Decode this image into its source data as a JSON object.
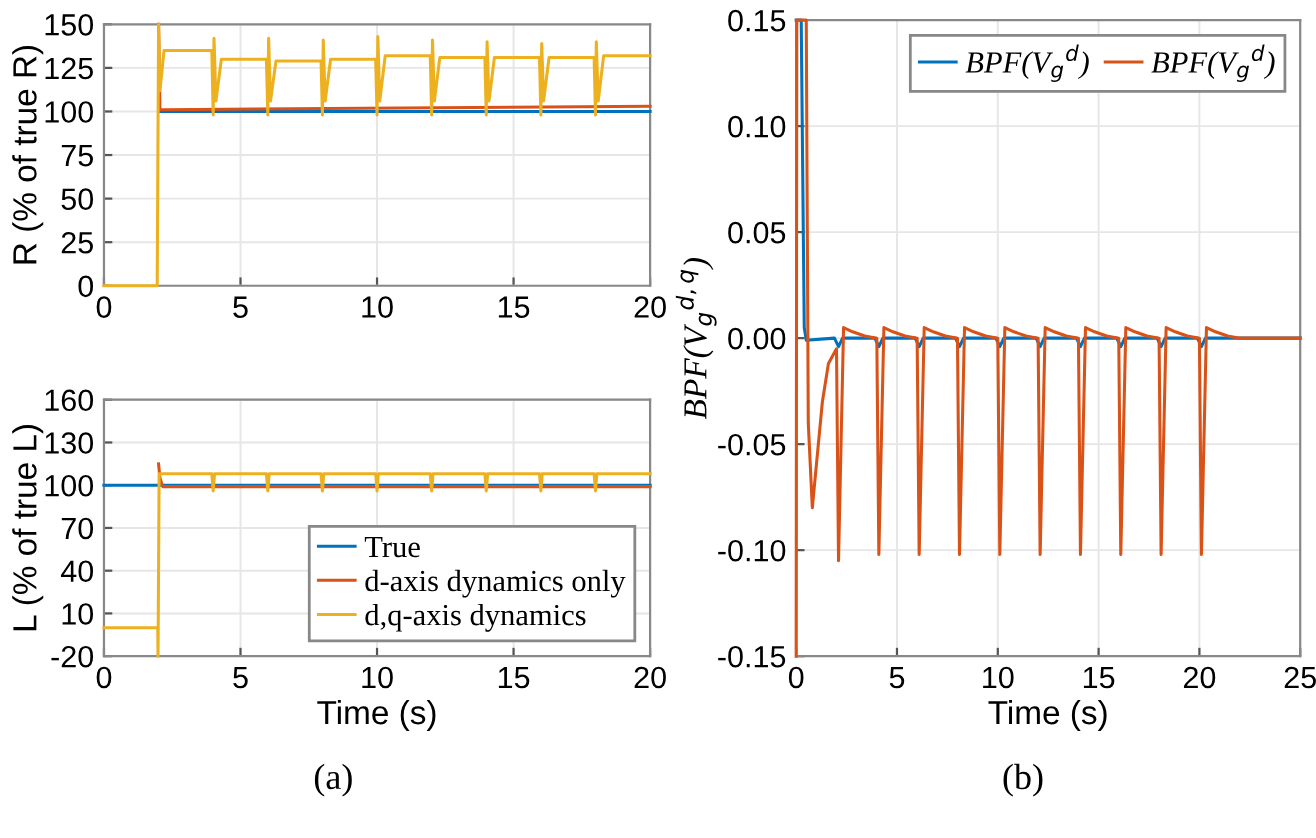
{
  "chart_data": [
    {
      "type": "line",
      "ylabel": "R (% of true R)",
      "xlim": [
        0,
        20
      ],
      "xticks": [
        0,
        5,
        10,
        15,
        20
      ],
      "ylim": [
        0,
        150
      ],
      "yticks": [
        0,
        25,
        50,
        75,
        100,
        125,
        150
      ],
      "grid": true,
      "legend": false,
      "series": [
        {
          "color": "#0072bd",
          "x": [
            2,
            20
          ],
          "values": [
            100,
            100
          ]
        },
        {
          "color": "#d95319",
          "x": [
            2.0,
            2.05,
            2.2,
            20
          ],
          "values": [
            150,
            101,
            101,
            103
          ]
        },
        {
          "color": "#edb120",
          "x": [
            0,
            1.95,
            2.0,
            2.05,
            2.2,
            3.95,
            4.0,
            4.03,
            4.1,
            4.3,
            5.95,
            6.0,
            6.03,
            6.1,
            6.3,
            7.95,
            8.0,
            8.03,
            8.1,
            8.3,
            9.95,
            10.0,
            10.03,
            10.1,
            10.3,
            11.95,
            12.0,
            12.03,
            12.1,
            12.3,
            13.95,
            14.0,
            14.03,
            14.1,
            14.3,
            15.95,
            16.0,
            16.03,
            16.1,
            16.3,
            17.95,
            18.0,
            18.03,
            18.1,
            18.3,
            20
          ],
          "values": [
            0,
            0,
            150,
            112,
            135,
            135,
            98,
            142,
            106,
            130,
            130,
            98,
            142,
            106,
            129,
            129,
            98,
            141,
            106,
            130,
            130,
            98,
            143,
            106,
            132,
            132,
            98,
            141,
            106,
            131,
            131,
            98,
            140,
            106,
            131,
            131,
            98,
            139,
            106,
            131,
            131,
            98,
            140,
            106,
            132,
            132
          ]
        }
      ]
    },
    {
      "type": "line",
      "xlabel": "Time (s)",
      "ylabel": "L (% of true L)",
      "xlim": [
        0,
        20
      ],
      "xticks": [
        0,
        5,
        10,
        15,
        20
      ],
      "ylim": [
        -20,
        160
      ],
      "yticks": [
        -20,
        10,
        40,
        70,
        100,
        130,
        160
      ],
      "grid": true,
      "legend": "bottom right",
      "annotations": [
        "(a)"
      ],
      "series": [
        {
          "name": "True",
          "color": "#0072bd",
          "x": [
            0,
            20
          ],
          "values": [
            100,
            100
          ]
        },
        {
          "name": "d-axis dynamics only",
          "color": "#d95319",
          "x": [
            2.0,
            2.05,
            2.15,
            20
          ],
          "values": [
            115,
            105,
            99,
            99
          ]
        },
        {
          "name": "d,q-axis dynamics",
          "color": "#edb120",
          "x": [
            0,
            1.97,
            1.98,
            2.02,
            3.95,
            4.0,
            4.05,
            5.95,
            6.0,
            6.05,
            7.95,
            8.0,
            8.05,
            9.95,
            10.0,
            10.05,
            11.95,
            12.0,
            12.05,
            13.95,
            14.0,
            14.05,
            15.95,
            16.0,
            16.05,
            17.95,
            18.0,
            18.05,
            20
          ],
          "values": [
            0,
            0,
            -20,
            108,
            108,
            96,
            108,
            108,
            96,
            108,
            108,
            96,
            108,
            108,
            96,
            108,
            108,
            96,
            108,
            108,
            96,
            108,
            108,
            96,
            108,
            108,
            96,
            108,
            108
          ]
        }
      ]
    },
    {
      "type": "line",
      "xlabel": "Time (s)",
      "ylabel": "BPF(V$_{g}$$^{d,q}$)",
      "xlim": [
        0,
        25
      ],
      "xticks": [
        0,
        5,
        10,
        15,
        20,
        25
      ],
      "ylim": [
        -0.15,
        0.15
      ],
      "yticks": [
        {
          "value": -0.15,
          "label": "-0.15"
        },
        {
          "value": -0.1,
          "label": "-0.10"
        },
        {
          "value": -0.05,
          "label": "-0.05"
        },
        {
          "value": 0,
          "label": "0.00"
        },
        {
          "value": 0.05,
          "label": "0.05"
        },
        {
          "value": 0.1,
          "label": "0.10"
        },
        {
          "value": 0.15,
          "label": "0.15"
        }
      ],
      "grid": true,
      "legend": "top right",
      "annotations": [
        "(b)"
      ],
      "series": [
        {
          "name": "BPF(V$_{g}$$^{d}$)",
          "color": "#0072bd",
          "x": [
            0,
            0.25,
            0.4,
            0.5,
            1.9,
            2.1,
            2.3,
            3.9,
            4.1,
            4.3,
            5.9,
            6.1,
            6.3,
            7.9,
            8.1,
            8.3,
            9.9,
            10.1,
            10.3,
            11.9,
            12.1,
            12.3,
            13.9,
            14.1,
            14.3,
            15.9,
            16.1,
            16.3,
            17.9,
            18.1,
            18.3,
            19.9,
            20.1,
            20.3,
            25
          ],
          "values": [
            0.15,
            0.15,
            0.005,
            -0.001,
            0,
            -0.004,
            0,
            0,
            -0.004,
            0,
            0,
            -0.004,
            0,
            0,
            -0.004,
            0,
            0,
            -0.004,
            0,
            0,
            -0.004,
            0,
            0,
            -0.004,
            0,
            0,
            -0.004,
            0,
            0,
            -0.004,
            0,
            0,
            -0.004,
            0,
            0
          ]
        },
        {
          "name": "BPF(V$_{g}$$^{d}$)",
          "color": "#d95319",
          "x": [
            0,
            0.03,
            0.5,
            0.6,
            0.8,
            1.0,
            1.3,
            1.6,
            2.0,
            2.1,
            2.35,
            2.8,
            3.4,
            4.0,
            4.1,
            4.35,
            4.8,
            5.4,
            6.0,
            6.1,
            6.35,
            6.8,
            7.4,
            8.0,
            8.1,
            8.35,
            8.8,
            9.4,
            10.0,
            10.1,
            10.35,
            10.8,
            11.4,
            12.0,
            12.1,
            12.35,
            12.8,
            13.4,
            14.0,
            14.1,
            14.35,
            14.8,
            15.4,
            16.0,
            16.1,
            16.35,
            16.8,
            17.4,
            18.0,
            18.1,
            18.35,
            18.8,
            19.4,
            20.0,
            20.1,
            20.35,
            20.8,
            21.4,
            22.0,
            25
          ],
          "values": [
            -0.15,
            0.15,
            0.15,
            -0.04,
            -0.08,
            -0.06,
            -0.03,
            -0.012,
            -0.005,
            -0.105,
            0.005,
            0.003,
            0.001,
            0,
            -0.102,
            0.005,
            0.003,
            0.001,
            0,
            -0.102,
            0.005,
            0.003,
            0.001,
            0,
            -0.102,
            0.005,
            0.003,
            0.001,
            0,
            -0.102,
            0.005,
            0.003,
            0.001,
            0,
            -0.102,
            0.005,
            0.003,
            0.001,
            0,
            -0.102,
            0.005,
            0.003,
            0.001,
            0,
            -0.102,
            0.005,
            0.003,
            0.001,
            0,
            -0.102,
            0.005,
            0.003,
            0.001,
            0,
            -0.102,
            0.005,
            0.003,
            0.001,
            0,
            0
          ]
        }
      ]
    }
  ]
}
